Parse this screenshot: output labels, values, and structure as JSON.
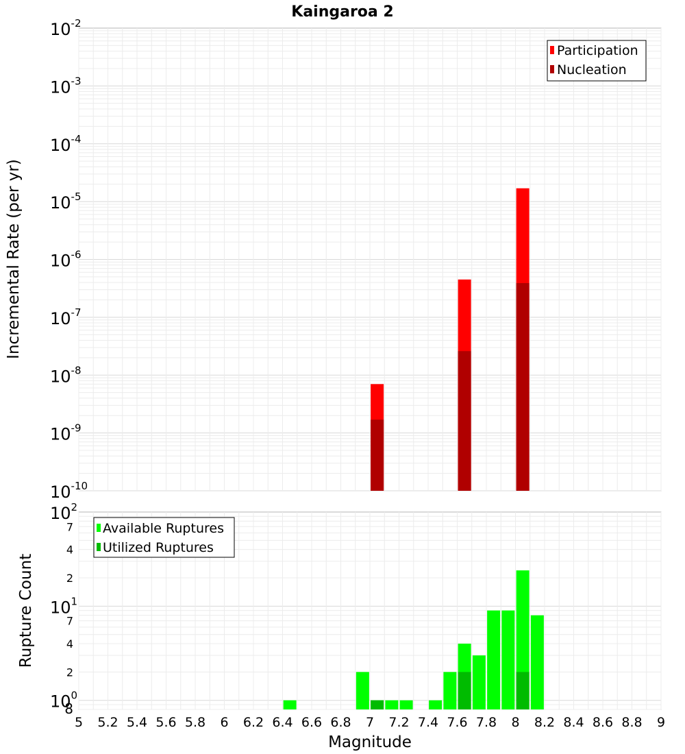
{
  "chart_data": [
    {
      "type": "bar",
      "title": "Kaingaroa 2",
      "xlabel": "",
      "ylabel": "Incremental Rate (per yr)",
      "y_scale": "log",
      "ylim": [
        1e-10,
        0.01
      ],
      "xlim": [
        5,
        9
      ],
      "y_tick_exponents": [
        "-10",
        "-9",
        "-8",
        "-7",
        "-6",
        "-5",
        "-4",
        "-3",
        "-2"
      ],
      "legend": {
        "position": "top-right"
      },
      "series": [
        {
          "name": "Participation",
          "color": "#ff0000",
          "points": [
            {
              "x": 7.05,
              "y": 7e-09
            },
            {
              "x": 7.65,
              "y": 4.5e-07
            },
            {
              "x": 8.05,
              "y": 1.7e-05
            }
          ]
        },
        {
          "name": "Nucleation",
          "color": "#b00000",
          "points": [
            {
              "x": 7.05,
              "y": 1.7e-09
            },
            {
              "x": 7.65,
              "y": 2.6e-08
            },
            {
              "x": 8.05,
              "y": 3.9e-07
            }
          ]
        }
      ]
    },
    {
      "type": "bar",
      "title": "",
      "xlabel": "Magnitude",
      "ylabel": "Rupture Count",
      "y_scale": "log",
      "ylim": [
        0.8,
        100
      ],
      "xlim": [
        5,
        9
      ],
      "x_ticks": [
        "5",
        "5.2",
        "5.4",
        "5.6",
        "5.8",
        "6",
        "6.2",
        "6.4",
        "6.6",
        "6.8",
        "7",
        "7.2",
        "7.4",
        "7.6",
        "7.8",
        "8",
        "8.2",
        "8.4",
        "8.6",
        "8.8",
        "9"
      ],
      "legend": {
        "position": "top-left"
      },
      "series": [
        {
          "name": "Available Ruptures",
          "color": "#00ff00",
          "points": [
            {
              "x": 6.45,
              "y": 1
            },
            {
              "x": 6.95,
              "y": 2
            },
            {
              "x": 7.05,
              "y": 1
            },
            {
              "x": 7.15,
              "y": 1
            },
            {
              "x": 7.25,
              "y": 1
            },
            {
              "x": 7.45,
              "y": 1
            },
            {
              "x": 7.55,
              "y": 2
            },
            {
              "x": 7.65,
              "y": 4
            },
            {
              "x": 7.75,
              "y": 3
            },
            {
              "x": 7.85,
              "y": 9
            },
            {
              "x": 7.95,
              "y": 9
            },
            {
              "x": 8.05,
              "y": 24
            },
            {
              "x": 8.15,
              "y": 8
            }
          ]
        },
        {
          "name": "Utilized Ruptures",
          "color": "#00bb00",
          "points": [
            {
              "x": 7.05,
              "y": 1
            },
            {
              "x": 7.65,
              "y": 2
            },
            {
              "x": 8.05,
              "y": 2
            }
          ]
        }
      ]
    }
  ]
}
